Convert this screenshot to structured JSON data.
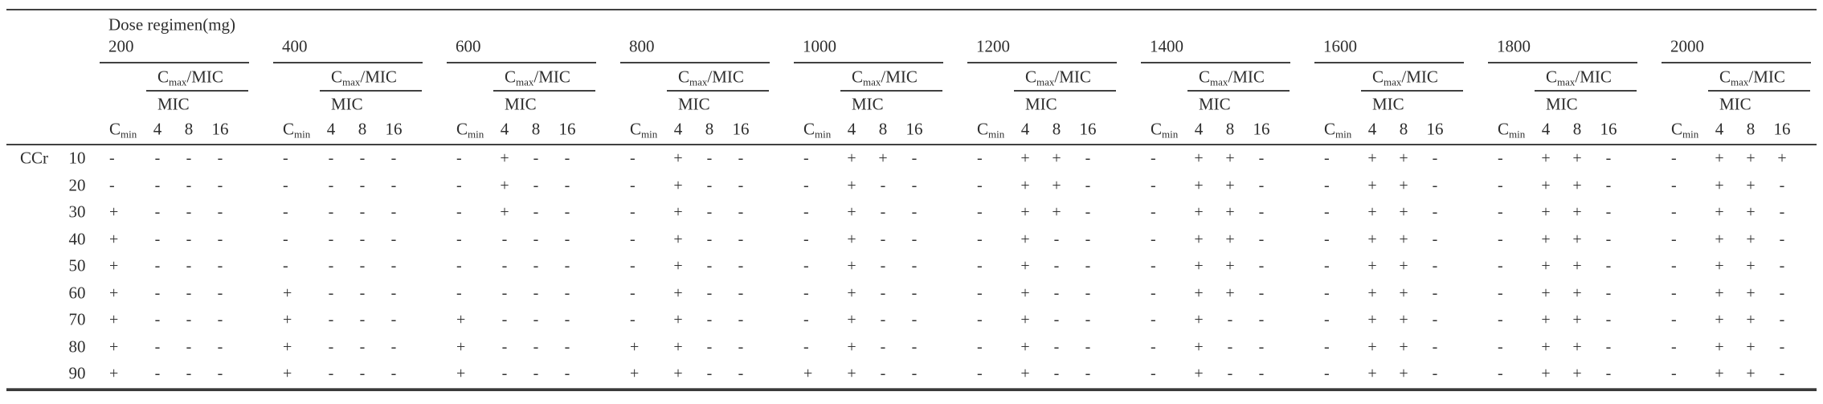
{
  "table": {
    "title": "Dose regimen(mg)",
    "row_axis": {
      "label": "CCr",
      "values": [
        "10",
        "20",
        "30",
        "40",
        "50",
        "60",
        "70",
        "80",
        "90"
      ]
    },
    "column_headers": {
      "cmax_mic": {
        "base": "C",
        "sub": "max",
        "suffix": "/MIC"
      },
      "mic": "MIC",
      "cmin": {
        "base": "C",
        "sub": "min"
      },
      "mic_ticks": [
        "4",
        "8",
        "16"
      ]
    },
    "symbols": {
      "positive": "+",
      "negative": "-"
    },
    "groups": [
      {
        "dose": "200",
        "rows": [
          [
            "-",
            "-",
            "-",
            "-"
          ],
          [
            "-",
            "-",
            "-",
            "-"
          ],
          [
            "+",
            "-",
            "-",
            "-"
          ],
          [
            "+",
            "-",
            "-",
            "-"
          ],
          [
            "+",
            "-",
            "-",
            "-"
          ],
          [
            "+",
            "-",
            "-",
            "-"
          ],
          [
            "+",
            "-",
            "-",
            "-"
          ],
          [
            "+",
            "-",
            "-",
            "-"
          ],
          [
            "+",
            "-",
            "-",
            "-"
          ]
        ]
      },
      {
        "dose": "400",
        "rows": [
          [
            "-",
            "-",
            "-",
            "-"
          ],
          [
            "-",
            "-",
            "-",
            "-"
          ],
          [
            "-",
            "-",
            "-",
            "-"
          ],
          [
            "-",
            "-",
            "-",
            "-"
          ],
          [
            "-",
            "-",
            "-",
            "-"
          ],
          [
            "+",
            "-",
            "-",
            "-"
          ],
          [
            "+",
            "-",
            "-",
            "-"
          ],
          [
            "+",
            "-",
            "-",
            "-"
          ],
          [
            "+",
            "-",
            "-",
            "-"
          ]
        ]
      },
      {
        "dose": "600",
        "rows": [
          [
            "-",
            "+",
            "-",
            "-"
          ],
          [
            "-",
            "+",
            "-",
            "-"
          ],
          [
            "-",
            "+",
            "-",
            "-"
          ],
          [
            "-",
            "-",
            "-",
            "-"
          ],
          [
            "-",
            "-",
            "-",
            "-"
          ],
          [
            "-",
            "-",
            "-",
            "-"
          ],
          [
            "+",
            "-",
            "-",
            "-"
          ],
          [
            "+",
            "-",
            "-",
            "-"
          ],
          [
            "+",
            "-",
            "-",
            "-"
          ]
        ]
      },
      {
        "dose": "800",
        "rows": [
          [
            "-",
            "+",
            "-",
            "-"
          ],
          [
            "-",
            "+",
            "-",
            "-"
          ],
          [
            "-",
            "+",
            "-",
            "-"
          ],
          [
            "-",
            "+",
            "-",
            "-"
          ],
          [
            "-",
            "+",
            "-",
            "-"
          ],
          [
            "-",
            "+",
            "-",
            "-"
          ],
          [
            "-",
            "+",
            "-",
            "-"
          ],
          [
            "+",
            "+",
            "-",
            "-"
          ],
          [
            "+",
            "+",
            "-",
            "-"
          ]
        ]
      },
      {
        "dose": "1000",
        "rows": [
          [
            "-",
            "+",
            "+",
            "-"
          ],
          [
            "-",
            "+",
            "-",
            "-"
          ],
          [
            "-",
            "+",
            "-",
            "-"
          ],
          [
            "-",
            "+",
            "-",
            "-"
          ],
          [
            "-",
            "+",
            "-",
            "-"
          ],
          [
            "-",
            "+",
            "-",
            "-"
          ],
          [
            "-",
            "+",
            "-",
            "-"
          ],
          [
            "-",
            "+",
            "-",
            "-"
          ],
          [
            "+",
            "+",
            "-",
            "-"
          ]
        ]
      },
      {
        "dose": "1200",
        "rows": [
          [
            "-",
            "+",
            "+",
            "-"
          ],
          [
            "-",
            "+",
            "+",
            "-"
          ],
          [
            "-",
            "+",
            "+",
            "-"
          ],
          [
            "-",
            "+",
            "-",
            "-"
          ],
          [
            "-",
            "+",
            "-",
            "-"
          ],
          [
            "-",
            "+",
            "-",
            "-"
          ],
          [
            "-",
            "+",
            "-",
            "-"
          ],
          [
            "-",
            "+",
            "-",
            "-"
          ],
          [
            "-",
            "+",
            "-",
            "-"
          ]
        ]
      },
      {
        "dose": "1400",
        "rows": [
          [
            "-",
            "+",
            "+",
            "-"
          ],
          [
            "-",
            "+",
            "+",
            "-"
          ],
          [
            "-",
            "+",
            "+",
            "-"
          ],
          [
            "-",
            "+",
            "+",
            "-"
          ],
          [
            "-",
            "+",
            "+",
            "-"
          ],
          [
            "-",
            "+",
            "+",
            "-"
          ],
          [
            "-",
            "+",
            "-",
            "-"
          ],
          [
            "-",
            "+",
            "-",
            "-"
          ],
          [
            "-",
            "+",
            "-",
            "-"
          ]
        ]
      },
      {
        "dose": "1600",
        "rows": [
          [
            "-",
            "+",
            "+",
            "-"
          ],
          [
            "-",
            "+",
            "+",
            "-"
          ],
          [
            "-",
            "+",
            "+",
            "-"
          ],
          [
            "-",
            "+",
            "+",
            "-"
          ],
          [
            "-",
            "+",
            "+",
            "-"
          ],
          [
            "-",
            "+",
            "+",
            "-"
          ],
          [
            "-",
            "+",
            "+",
            "-"
          ],
          [
            "-",
            "+",
            "+",
            "-"
          ],
          [
            "-",
            "+",
            "+",
            "-"
          ]
        ]
      },
      {
        "dose": "1800",
        "rows": [
          [
            "-",
            "+",
            "+",
            "-"
          ],
          [
            "-",
            "+",
            "+",
            "-"
          ],
          [
            "-",
            "+",
            "+",
            "-"
          ],
          [
            "-",
            "+",
            "+",
            "-"
          ],
          [
            "-",
            "+",
            "+",
            "-"
          ],
          [
            "-",
            "+",
            "+",
            "-"
          ],
          [
            "-",
            "+",
            "+",
            "-"
          ],
          [
            "-",
            "+",
            "+",
            "-"
          ],
          [
            "-",
            "+",
            "+",
            "-"
          ]
        ]
      },
      {
        "dose": "2000",
        "rows": [
          [
            "-",
            "+",
            "+",
            "+"
          ],
          [
            "-",
            "+",
            "+",
            "-"
          ],
          [
            "-",
            "+",
            "+",
            "-"
          ],
          [
            "-",
            "+",
            "+",
            "-"
          ],
          [
            "-",
            "+",
            "+",
            "-"
          ],
          [
            "-",
            "+",
            "+",
            "-"
          ],
          [
            "-",
            "+",
            "+",
            "-"
          ],
          [
            "-",
            "+",
            "+",
            "-"
          ],
          [
            "-",
            "+",
            "+",
            "-"
          ]
        ]
      }
    ]
  }
}
